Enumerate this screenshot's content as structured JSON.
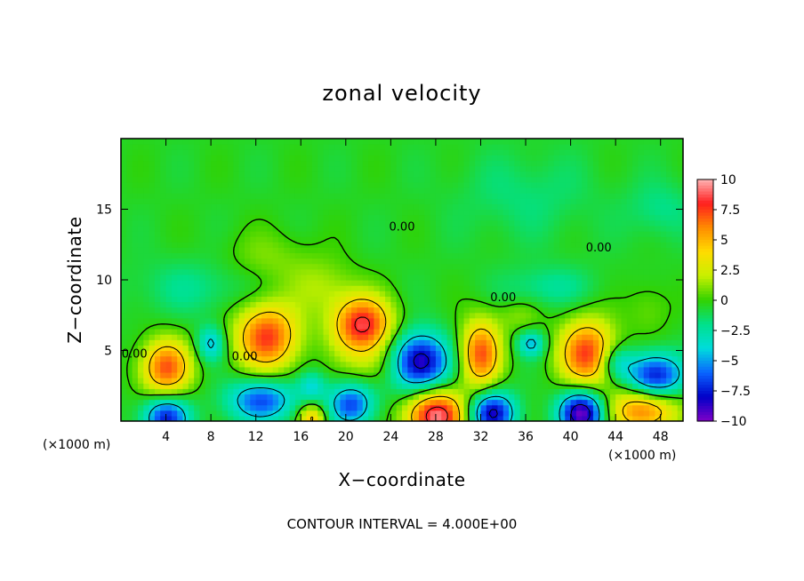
{
  "chart_data": {
    "type": "heatmap",
    "title": "zonal velocity",
    "xlabel": "X−coordinate",
    "ylabel": "Z−coordinate",
    "x_unit_left": "(×1000 m)",
    "x_unit_right": "(×1000 m)",
    "footer": "CONTOUR INTERVAL = 4.000E+00",
    "xlim": [
      0,
      50
    ],
    "ylim": [
      0,
      20
    ],
    "x_ticks": [
      4,
      8,
      12,
      16,
      20,
      24,
      28,
      32,
      36,
      40,
      44,
      48
    ],
    "x_tick_labels": [
      "4",
      "8",
      "12",
      "16",
      "20",
      "24",
      "28",
      "32",
      "36",
      "40",
      "44",
      "48"
    ],
    "y_ticks": [
      5,
      10,
      15
    ],
    "y_tick_labels": [
      "5",
      "10",
      "15"
    ],
    "colorbar": {
      "range": [
        -10,
        10
      ],
      "ticks": [
        10,
        7.5,
        5,
        2.5,
        0,
        -2.5,
        -5,
        -7.5,
        -10
      ],
      "tick_labels": [
        "10",
        "7.5",
        "5",
        "2.5",
        "0",
        "−2.5",
        "−5",
        "−7.5",
        "−10"
      ]
    },
    "contour_labels": [
      {
        "text": "0.00",
        "x": 25.0,
        "z": 13.5
      },
      {
        "text": "0.00",
        "x": 42.5,
        "z": 12.0
      },
      {
        "text": "0.00",
        "x": 34.0,
        "z": 8.5
      },
      {
        "text": "0.00",
        "x": 11.0,
        "z": 4.3
      },
      {
        "text": "0.00",
        "x": 1.2,
        "z": 4.5
      }
    ],
    "features": [
      {
        "x": 4.0,
        "z": 3.8,
        "value": 7.5,
        "rx": 2.2,
        "rz": 2.0
      },
      {
        "x": 13.0,
        "z": 6.0,
        "value": 8.0,
        "rx": 2.8,
        "rz": 2.4
      },
      {
        "x": 21.5,
        "z": 6.8,
        "value": 9.0,
        "rx": 2.6,
        "rz": 2.0
      },
      {
        "x": 32.0,
        "z": 4.8,
        "value": 7.5,
        "rx": 1.8,
        "rz": 2.4
      },
      {
        "x": 41.5,
        "z": 4.8,
        "value": 8.0,
        "rx": 2.5,
        "rz": 2.4
      },
      {
        "x": 28.0,
        "z": 0.4,
        "value": 10.0,
        "rx": 2.6,
        "rz": 1.8
      },
      {
        "x": 46.5,
        "z": 0.8,
        "value": 7.0,
        "rx": 3.0,
        "rz": 1.6
      },
      {
        "x": 17.0,
        "z": 0.2,
        "value": 5.0,
        "rx": 1.2,
        "rz": 1.0
      },
      {
        "x": 26.5,
        "z": 4.2,
        "value": -9.0,
        "rx": 2.6,
        "rz": 2.0
      },
      {
        "x": 4.0,
        "z": 0.3,
        "value": -7.0,
        "rx": 2.0,
        "rz": 1.5
      },
      {
        "x": 12.5,
        "z": 1.5,
        "value": -6.0,
        "rx": 3.0,
        "rz": 1.5
      },
      {
        "x": 20.5,
        "z": 1.2,
        "value": -6.0,
        "rx": 2.0,
        "rz": 1.5
      },
      {
        "x": 33.0,
        "z": 0.6,
        "value": -8.0,
        "rx": 2.0,
        "rz": 1.5
      },
      {
        "x": 41.0,
        "z": 0.6,
        "value": -9.5,
        "rx": 2.0,
        "rz": 1.6
      },
      {
        "x": 47.5,
        "z": 3.2,
        "value": -7.5,
        "rx": 2.5,
        "rz": 1.6
      },
      {
        "x": 8.0,
        "z": 5.5,
        "value": -4.0,
        "rx": 1.2,
        "rz": 1.2
      },
      {
        "x": 36.5,
        "z": 5.5,
        "value": -4.0,
        "rx": 1.2,
        "rz": 0.9
      },
      {
        "x": 44.0,
        "z": 4.2,
        "value": -3.5,
        "rx": 1.5,
        "rz": 1.2
      },
      {
        "x": 17.0,
        "z": 2.5,
        "value": -3.0,
        "rx": 1.2,
        "rz": 1.0
      },
      {
        "x": 23.0,
        "z": 4.0,
        "value": 2.0,
        "rx": 3.0,
        "rz": 1.5
      },
      {
        "x": 13.0,
        "z": 11.5,
        "value": 1.5,
        "rx": 4.0,
        "rz": 2.0
      },
      {
        "x": 18.0,
        "z": 9.5,
        "value": 2.0,
        "rx": 3.0,
        "rz": 2.0
      },
      {
        "x": 35.5,
        "z": 7.5,
        "value": 1.5,
        "rx": 2.0,
        "rz": 1.2
      },
      {
        "x": 47.0,
        "z": 8.0,
        "value": 1.2,
        "rx": 2.0,
        "rz": 2.0
      },
      {
        "x": 7.0,
        "z": 9.5,
        "value": -1.5,
        "rx": 6.0,
        "rz": 2.0
      },
      {
        "x": 38.0,
        "z": 9.5,
        "value": -1.8,
        "rx": 4.0,
        "rz": 1.5
      },
      {
        "x": 48.0,
        "z": 15.0,
        "value": -1.5,
        "rx": 3.0,
        "rz": 2.0
      },
      {
        "x": 36.0,
        "z": 16.0,
        "value": -1.2,
        "rx": 6.0,
        "rz": 3.0
      }
    ],
    "background_value": -0.5,
    "colors": {
      "scale": [
        "#7f00c8",
        "#0000c8",
        "#0a64ff",
        "#00dcdc",
        "#00e18c",
        "#32d200",
        "#c8f000",
        "#ffdc00",
        "#ff8c00",
        "#ff1e1e",
        "#ffb4b4"
      ],
      "frame": "#000000",
      "background": "#ffffff"
    }
  }
}
